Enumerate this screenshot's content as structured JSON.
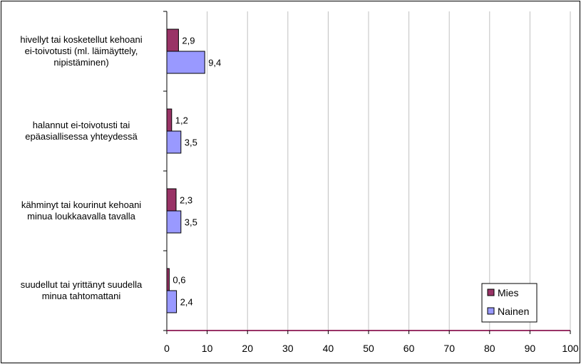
{
  "chart_data": {
    "type": "bar",
    "orientation": "horizontal",
    "categories": [
      [
        "hivellyt tai kosketellut kehoani",
        "ei-toivotusti (ml. läimäyttely,",
        "nipistäminen)"
      ],
      [
        "halannut ei-toivotusti tai",
        "epäasiallisessa yhteydessä"
      ],
      [
        "kähminyt tai kourinut kehoani",
        "minua loukkaavalla tavalla"
      ],
      [
        "suudellut tai yrittänyt suudella",
        "minua tahtomattani"
      ]
    ],
    "series": [
      {
        "name": "Mies",
        "values": [
          2.9,
          1.2,
          2.3,
          0.6
        ],
        "labels": [
          "2,9",
          "1,2",
          "2,3",
          "0,6"
        ],
        "color": "#993366"
      },
      {
        "name": "Nainen",
        "values": [
          9.4,
          3.5,
          3.5,
          2.4
        ],
        "labels": [
          "9,4",
          "3,5",
          "3,5",
          "2,4"
        ],
        "color": "#9999ff"
      }
    ],
    "xlim": [
      0,
      100
    ],
    "xticks": [
      0,
      10,
      20,
      30,
      40,
      50,
      60,
      70,
      80,
      90,
      100
    ],
    "title": "",
    "xlabel": "",
    "ylabel": "",
    "grid": "vertical",
    "legend": "bottom-right"
  }
}
